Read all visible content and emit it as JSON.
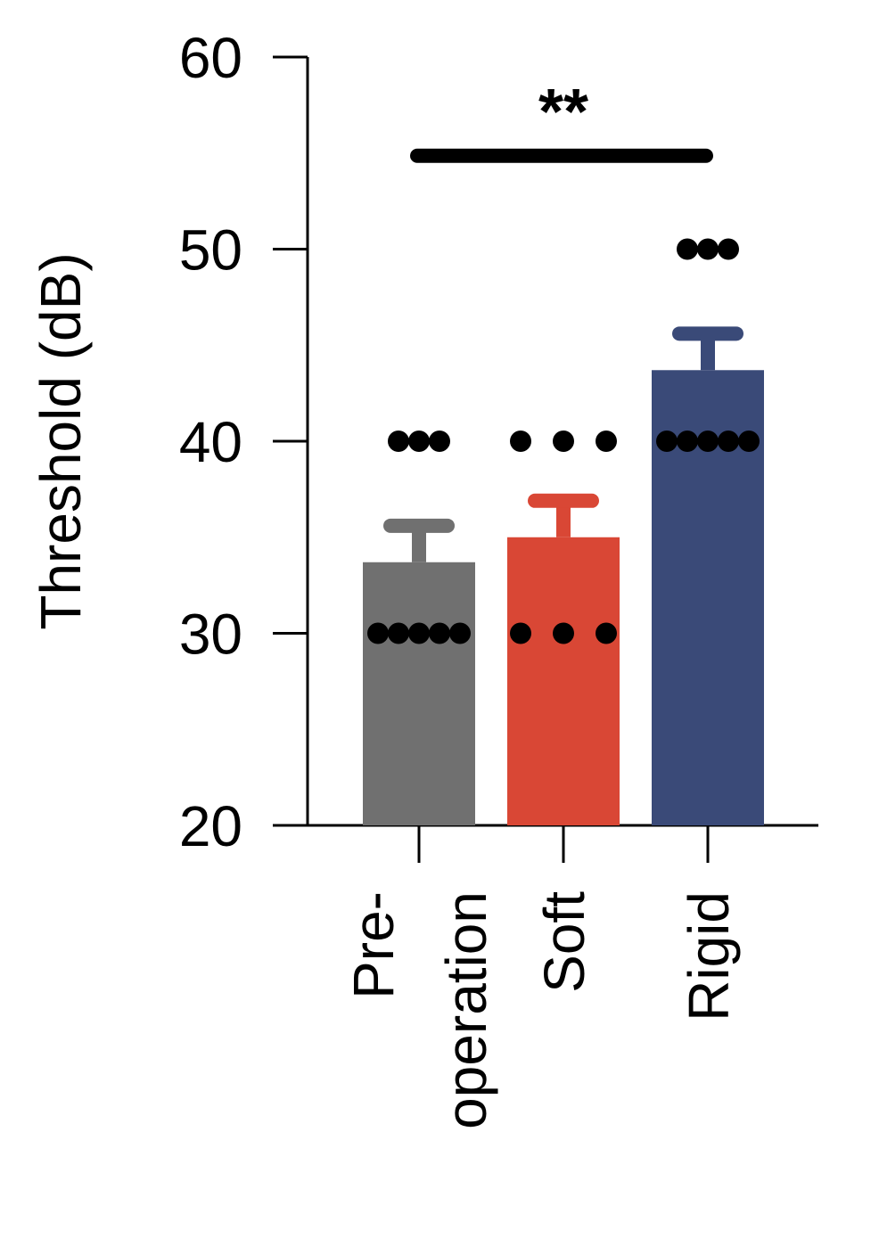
{
  "chart_data": {
    "type": "bar",
    "ylabel": "Threshold (dB)",
    "ylim": [
      20,
      60
    ],
    "yticks": [
      20,
      30,
      40,
      50,
      60
    ],
    "categories": [
      {
        "lines": [
          "Pre-",
          "operation"
        ]
      },
      {
        "lines": [
          "Soft"
        ]
      },
      {
        "lines": [
          "Rigid"
        ]
      }
    ],
    "series": [
      {
        "values": [
          33.7,
          35.0,
          43.7
        ],
        "error": [
          1.9,
          1.9,
          1.9
        ]
      }
    ],
    "points": [
      [
        30,
        30,
        30,
        30,
        30,
        40,
        40,
        40
      ],
      [
        30,
        30,
        30,
        40,
        40,
        40
      ],
      [
        40,
        40,
        40,
        40,
        40,
        50,
        50,
        50
      ]
    ],
    "colors": [
      "#707070",
      "#d94735",
      "#3a4a78"
    ],
    "significance": {
      "from": 0,
      "to": 2,
      "label": "**",
      "y": 55
    },
    "grid": false
  }
}
